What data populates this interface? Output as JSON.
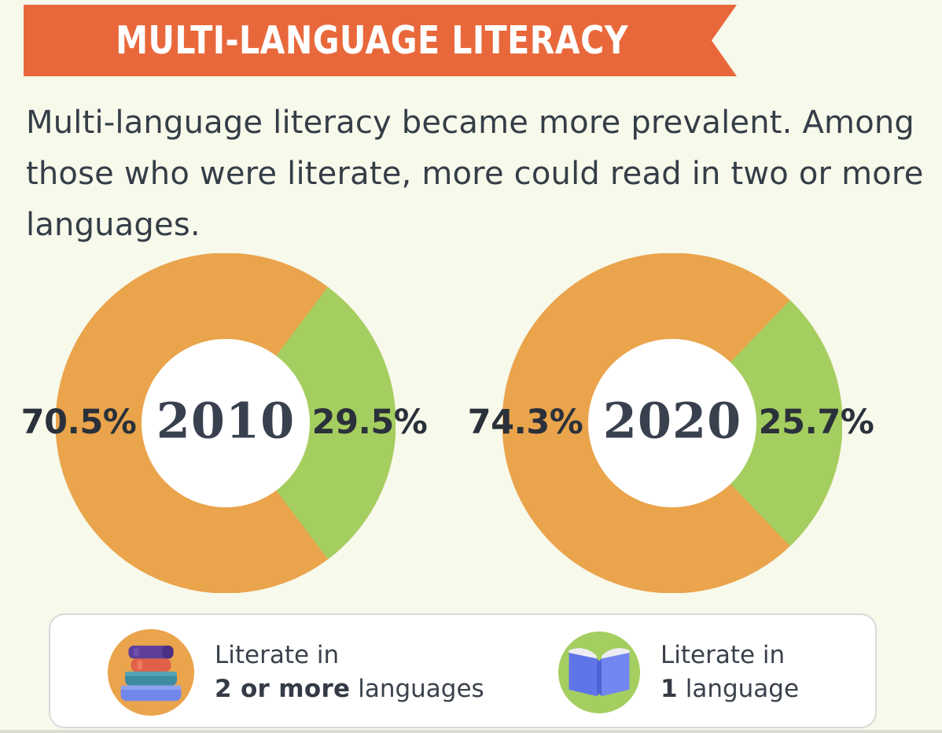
{
  "header": {
    "title": "MULTI-LANGUAGE LITERACY",
    "description_lines": [
      "Multi-language literacy became more prevalent. Among",
      "those who were literate, more could read in two or more",
      "languages."
    ]
  },
  "chart_data": [
    {
      "type": "pie",
      "donut": true,
      "title": "2010",
      "labels": [
        "Literate in 2 or more languages",
        "Literate in 1 language"
      ],
      "values": [
        70.5,
        29.5
      ],
      "colors": [
        "#eaa44c",
        "#a5ce60"
      ],
      "annotations": [
        "70.5%",
        "29.5%"
      ],
      "annotation_positions": [
        "left",
        "right"
      ],
      "center_label": "2010"
    },
    {
      "type": "pie",
      "donut": true,
      "title": "2020",
      "labels": [
        "Literate in 2 or more languages",
        "Literate in 1 language"
      ],
      "values": [
        74.3,
        25.7
      ],
      "colors": [
        "#eaa44c",
        "#a5ce60"
      ],
      "annotations": [
        "74.3%",
        "25.7%"
      ],
      "annotation_positions": [
        "left",
        "right"
      ],
      "center_label": "2020"
    }
  ],
  "legend": {
    "items": [
      {
        "icon": "books-stack-icon",
        "icon_bg": "#eaa44c",
        "line1": "Literate in",
        "bold": "2 or more",
        "rest": " languages"
      },
      {
        "icon": "open-book-icon",
        "icon_bg": "#a5ce60",
        "line1": "Literate in",
        "bold": "1",
        "rest": " language"
      }
    ]
  },
  "colors": {
    "banner_orange": "#e9683b",
    "donut_orange": "#eaa44c",
    "donut_green": "#a5ce60",
    "background_cream": "#f7f9eb",
    "text_dark": "#353d47",
    "year_text": "#39414e",
    "percent_text": "#2a313a",
    "legend_border": "#d9d9d9",
    "hole_white": "#ffffff"
  }
}
